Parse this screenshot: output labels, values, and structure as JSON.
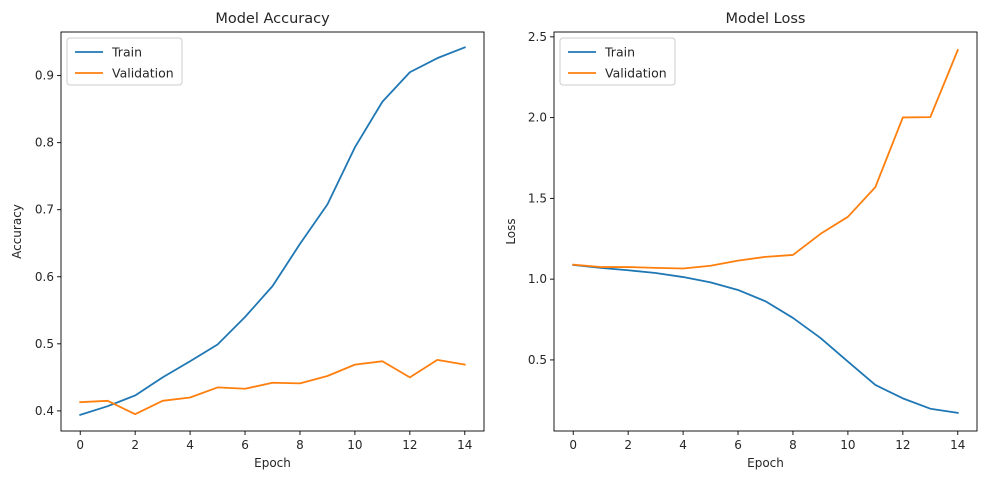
{
  "chart_data": [
    {
      "type": "line",
      "title": "Model Accuracy",
      "xlabel": "Epoch",
      "ylabel": "Accuracy",
      "x": [
        0,
        1,
        2,
        3,
        4,
        5,
        6,
        7,
        8,
        9,
        10,
        11,
        12,
        13,
        14
      ],
      "xlim": [
        -0.7,
        14.7
      ],
      "ylim": [
        0.37,
        0.965
      ],
      "xticks": [
        0,
        2,
        4,
        6,
        8,
        10,
        12,
        14
      ],
      "xtick_labels": [
        "0",
        "2",
        "4",
        "6",
        "8",
        "10",
        "12",
        "14"
      ],
      "yticks": [
        0.4,
        0.5,
        0.6,
        0.7,
        0.8,
        0.9
      ],
      "ytick_labels": [
        "0.4",
        "0.5",
        "0.6",
        "0.7",
        "0.8",
        "0.9"
      ],
      "grid": false,
      "legend_position": "top-left",
      "series": [
        {
          "name": "Train",
          "color": "#1f77b4",
          "values": [
            0.394,
            0.407,
            0.423,
            0.45,
            0.474,
            0.499,
            0.54,
            0.586,
            0.649,
            0.708,
            0.793,
            0.861,
            0.905,
            0.926,
            0.942
          ]
        },
        {
          "name": "Validation",
          "color": "#ff7f0e",
          "values": [
            0.413,
            0.415,
            0.395,
            0.415,
            0.42,
            0.435,
            0.433,
            0.442,
            0.441,
            0.452,
            0.469,
            0.474,
            0.45,
            0.476,
            0.469
          ]
        }
      ]
    },
    {
      "type": "line",
      "title": "Model Loss",
      "xlabel": "Epoch",
      "ylabel": "Loss",
      "x": [
        0,
        1,
        2,
        3,
        4,
        5,
        6,
        7,
        8,
        9,
        10,
        11,
        12,
        13,
        14
      ],
      "xlim": [
        -0.7,
        14.7
      ],
      "ylim": [
        0.06,
        2.53
      ],
      "xticks": [
        0,
        2,
        4,
        6,
        8,
        10,
        12,
        14
      ],
      "xtick_labels": [
        "0",
        "2",
        "4",
        "6",
        "8",
        "10",
        "12",
        "14"
      ],
      "yticks": [
        0.5,
        1.0,
        1.5,
        2.0,
        2.5
      ],
      "ytick_labels": [
        "0.5",
        "1.0",
        "1.5",
        "2.0",
        "2.5"
      ],
      "grid": false,
      "legend_position": "top-left",
      "series": [
        {
          "name": "Train",
          "color": "#1f77b4",
          "values": [
            1.088,
            1.07,
            1.055,
            1.038,
            1.013,
            0.98,
            0.933,
            0.863,
            0.76,
            0.636,
            0.49,
            0.345,
            0.262,
            0.198,
            0.172
          ]
        },
        {
          "name": "Validation",
          "color": "#ff7f0e",
          "values": [
            1.09,
            1.075,
            1.075,
            1.07,
            1.066,
            1.083,
            1.115,
            1.138,
            1.15,
            1.28,
            1.386,
            1.57,
            2.001,
            2.003,
            2.418
          ]
        }
      ]
    }
  ]
}
